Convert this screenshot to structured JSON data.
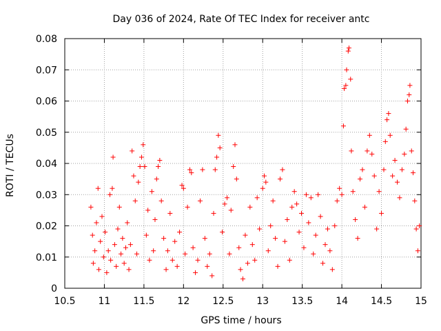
{
  "chart_data": {
    "type": "scatter",
    "title": "Day 036 of 2024, Rate Of TEC Index for receiver antc",
    "xlabel": "GPS time / hours",
    "ylabel": "ROTI / TECUs",
    "xlim": [
      10.5,
      15
    ],
    "ylim": [
      0,
      0.08
    ],
    "x_ticks": [
      10.5,
      11,
      11.5,
      12,
      12.5,
      13,
      13.5,
      14,
      14.5,
      15
    ],
    "x_tick_labels": [
      "10.5",
      "11",
      "11.5",
      "12",
      "12.5",
      "13",
      "13.5",
      "14",
      "14.5",
      "15"
    ],
    "y_ticks": [
      0,
      0.01,
      0.02,
      0.03,
      0.04,
      0.05,
      0.06,
      0.07,
      0.08
    ],
    "y_tick_labels": [
      "0",
      "0.01",
      "0.02",
      "0.03",
      "0.04",
      "0.05",
      "0.06",
      "0.07",
      "0.08"
    ],
    "grid": true,
    "marker": "+",
    "color": "#ff0000",
    "series": [
      {
        "values": [
          [
            10.83,
            0.026
          ],
          [
            10.85,
            0.017
          ],
          [
            10.86,
            0.008
          ],
          [
            10.88,
            0.012
          ],
          [
            10.9,
            0.021
          ],
          [
            10.92,
            0.032
          ],
          [
            10.93,
            0.006
          ],
          [
            10.95,
            0.015
          ],
          [
            10.97,
            0.023
          ],
          [
            10.99,
            0.01
          ],
          [
            11.01,
            0.018
          ],
          [
            11.03,
            0.005
          ],
          [
            11.05,
            0.012
          ],
          [
            11.07,
            0.03
          ],
          [
            11.08,
            0.009
          ],
          [
            11.1,
            0.032
          ],
          [
            11.11,
            0.042
          ],
          [
            11.13,
            0.014
          ],
          [
            11.15,
            0.007
          ],
          [
            11.17,
            0.019
          ],
          [
            11.19,
            0.026
          ],
          [
            11.21,
            0.011
          ],
          [
            11.23,
            0.016
          ],
          [
            11.25,
            0.008
          ],
          [
            11.27,
            0.013
          ],
          [
            11.29,
            0.021
          ],
          [
            11.31,
            0.006
          ],
          [
            11.33,
            0.014
          ],
          [
            11.35,
            0.044
          ],
          [
            11.37,
            0.036
          ],
          [
            11.39,
            0.028
          ],
          [
            11.41,
            0.011
          ],
          [
            11.43,
            0.034
          ],
          [
            11.45,
            0.039
          ],
          [
            11.47,
            0.042
          ],
          [
            11.49,
            0.046
          ],
          [
            11.51,
            0.039
          ],
          [
            11.53,
            0.017
          ],
          [
            11.55,
            0.025
          ],
          [
            11.57,
            0.009
          ],
          [
            11.6,
            0.031
          ],
          [
            11.62,
            0.012
          ],
          [
            11.64,
            0.022
          ],
          [
            11.66,
            0.035
          ],
          [
            11.68,
            0.039
          ],
          [
            11.7,
            0.041
          ],
          [
            11.72,
            0.028
          ],
          [
            11.75,
            0.016
          ],
          [
            11.78,
            0.006
          ],
          [
            11.8,
            0.012
          ],
          [
            11.83,
            0.024
          ],
          [
            11.86,
            0.009
          ],
          [
            11.89,
            0.015
          ],
          [
            11.92,
            0.007
          ],
          [
            11.95,
            0.018
          ],
          [
            11.98,
            0.033
          ],
          [
            12.0,
            0.032
          ],
          [
            12.02,
            0.011
          ],
          [
            12.05,
            0.026
          ],
          [
            12.08,
            0.038
          ],
          [
            12.1,
            0.037
          ],
          [
            12.12,
            0.013
          ],
          [
            12.15,
            0.005
          ],
          [
            12.18,
            0.009
          ],
          [
            12.21,
            0.028
          ],
          [
            12.24,
            0.038
          ],
          [
            12.27,
            0.016
          ],
          [
            12.3,
            0.007
          ],
          [
            12.33,
            0.011
          ],
          [
            12.36,
            0.004
          ],
          [
            12.38,
            0.024
          ],
          [
            12.4,
            0.038
          ],
          [
            12.42,
            0.042
          ],
          [
            12.44,
            0.049
          ],
          [
            12.46,
            0.045
          ],
          [
            12.49,
            0.018
          ],
          [
            12.52,
            0.027
          ],
          [
            12.55,
            0.029
          ],
          [
            12.58,
            0.011
          ],
          [
            12.6,
            0.025
          ],
          [
            12.63,
            0.039
          ],
          [
            12.65,
            0.046
          ],
          [
            12.67,
            0.035
          ],
          [
            12.7,
            0.013
          ],
          [
            12.72,
            0.006
          ],
          [
            12.75,
            0.003
          ],
          [
            12.78,
            0.017
          ],
          [
            12.81,
            0.008
          ],
          [
            12.84,
            0.026
          ],
          [
            12.87,
            0.014
          ],
          [
            12.9,
            0.009
          ],
          [
            12.93,
            0.029
          ],
          [
            12.96,
            0.019
          ],
          [
            13.0,
            0.032
          ],
          [
            13.02,
            0.036
          ],
          [
            13.04,
            0.034
          ],
          [
            13.07,
            0.012
          ],
          [
            13.1,
            0.02
          ],
          [
            13.13,
            0.028
          ],
          [
            13.16,
            0.016
          ],
          [
            13.19,
            0.007
          ],
          [
            13.22,
            0.035
          ],
          [
            13.25,
            0.038
          ],
          [
            13.28,
            0.015
          ],
          [
            13.31,
            0.022
          ],
          [
            13.34,
            0.009
          ],
          [
            13.37,
            0.026
          ],
          [
            13.4,
            0.031
          ],
          [
            13.43,
            0.027
          ],
          [
            13.46,
            0.018
          ],
          [
            13.49,
            0.024
          ],
          [
            13.52,
            0.013
          ],
          [
            13.55,
            0.03
          ],
          [
            13.58,
            0.021
          ],
          [
            13.61,
            0.029
          ],
          [
            13.64,
            0.011
          ],
          [
            13.67,
            0.017
          ],
          [
            13.7,
            0.03
          ],
          [
            13.73,
            0.023
          ],
          [
            13.76,
            0.008
          ],
          [
            13.79,
            0.014
          ],
          [
            13.82,
            0.019
          ],
          [
            13.85,
            0.012
          ],
          [
            13.88,
            0.006
          ],
          [
            13.91,
            0.02
          ],
          [
            13.94,
            0.028
          ],
          [
            13.97,
            0.032
          ],
          [
            14.0,
            0.03
          ],
          [
            14.02,
            0.052
          ],
          [
            14.03,
            0.064
          ],
          [
            14.05,
            0.065
          ],
          [
            14.06,
            0.07
          ],
          [
            14.08,
            0.076
          ],
          [
            14.09,
            0.077
          ],
          [
            14.11,
            0.067
          ],
          [
            14.12,
            0.044
          ],
          [
            14.14,
            0.031
          ],
          [
            14.17,
            0.022
          ],
          [
            14.2,
            0.016
          ],
          [
            14.23,
            0.035
          ],
          [
            14.26,
            0.038
          ],
          [
            14.29,
            0.026
          ],
          [
            14.32,
            0.044
          ],
          [
            14.35,
            0.049
          ],
          [
            14.38,
            0.043
          ],
          [
            14.41,
            0.036
          ],
          [
            14.44,
            0.019
          ],
          [
            14.47,
            0.031
          ],
          [
            14.5,
            0.024
          ],
          [
            14.53,
            0.038
          ],
          [
            14.55,
            0.047
          ],
          [
            14.57,
            0.054
          ],
          [
            14.59,
            0.056
          ],
          [
            14.61,
            0.049
          ],
          [
            14.64,
            0.036
          ],
          [
            14.67,
            0.041
          ],
          [
            14.7,
            0.034
          ],
          [
            14.73,
            0.029
          ],
          [
            14.76,
            0.038
          ],
          [
            14.79,
            0.043
          ],
          [
            14.81,
            0.051
          ],
          [
            14.83,
            0.06
          ],
          [
            14.85,
            0.062
          ],
          [
            14.86,
            0.065
          ],
          [
            14.88,
            0.044
          ],
          [
            14.9,
            0.037
          ],
          [
            14.92,
            0.028
          ],
          [
            14.94,
            0.019
          ],
          [
            14.96,
            0.012
          ],
          [
            14.98,
            0.02
          ]
        ]
      }
    ]
  }
}
